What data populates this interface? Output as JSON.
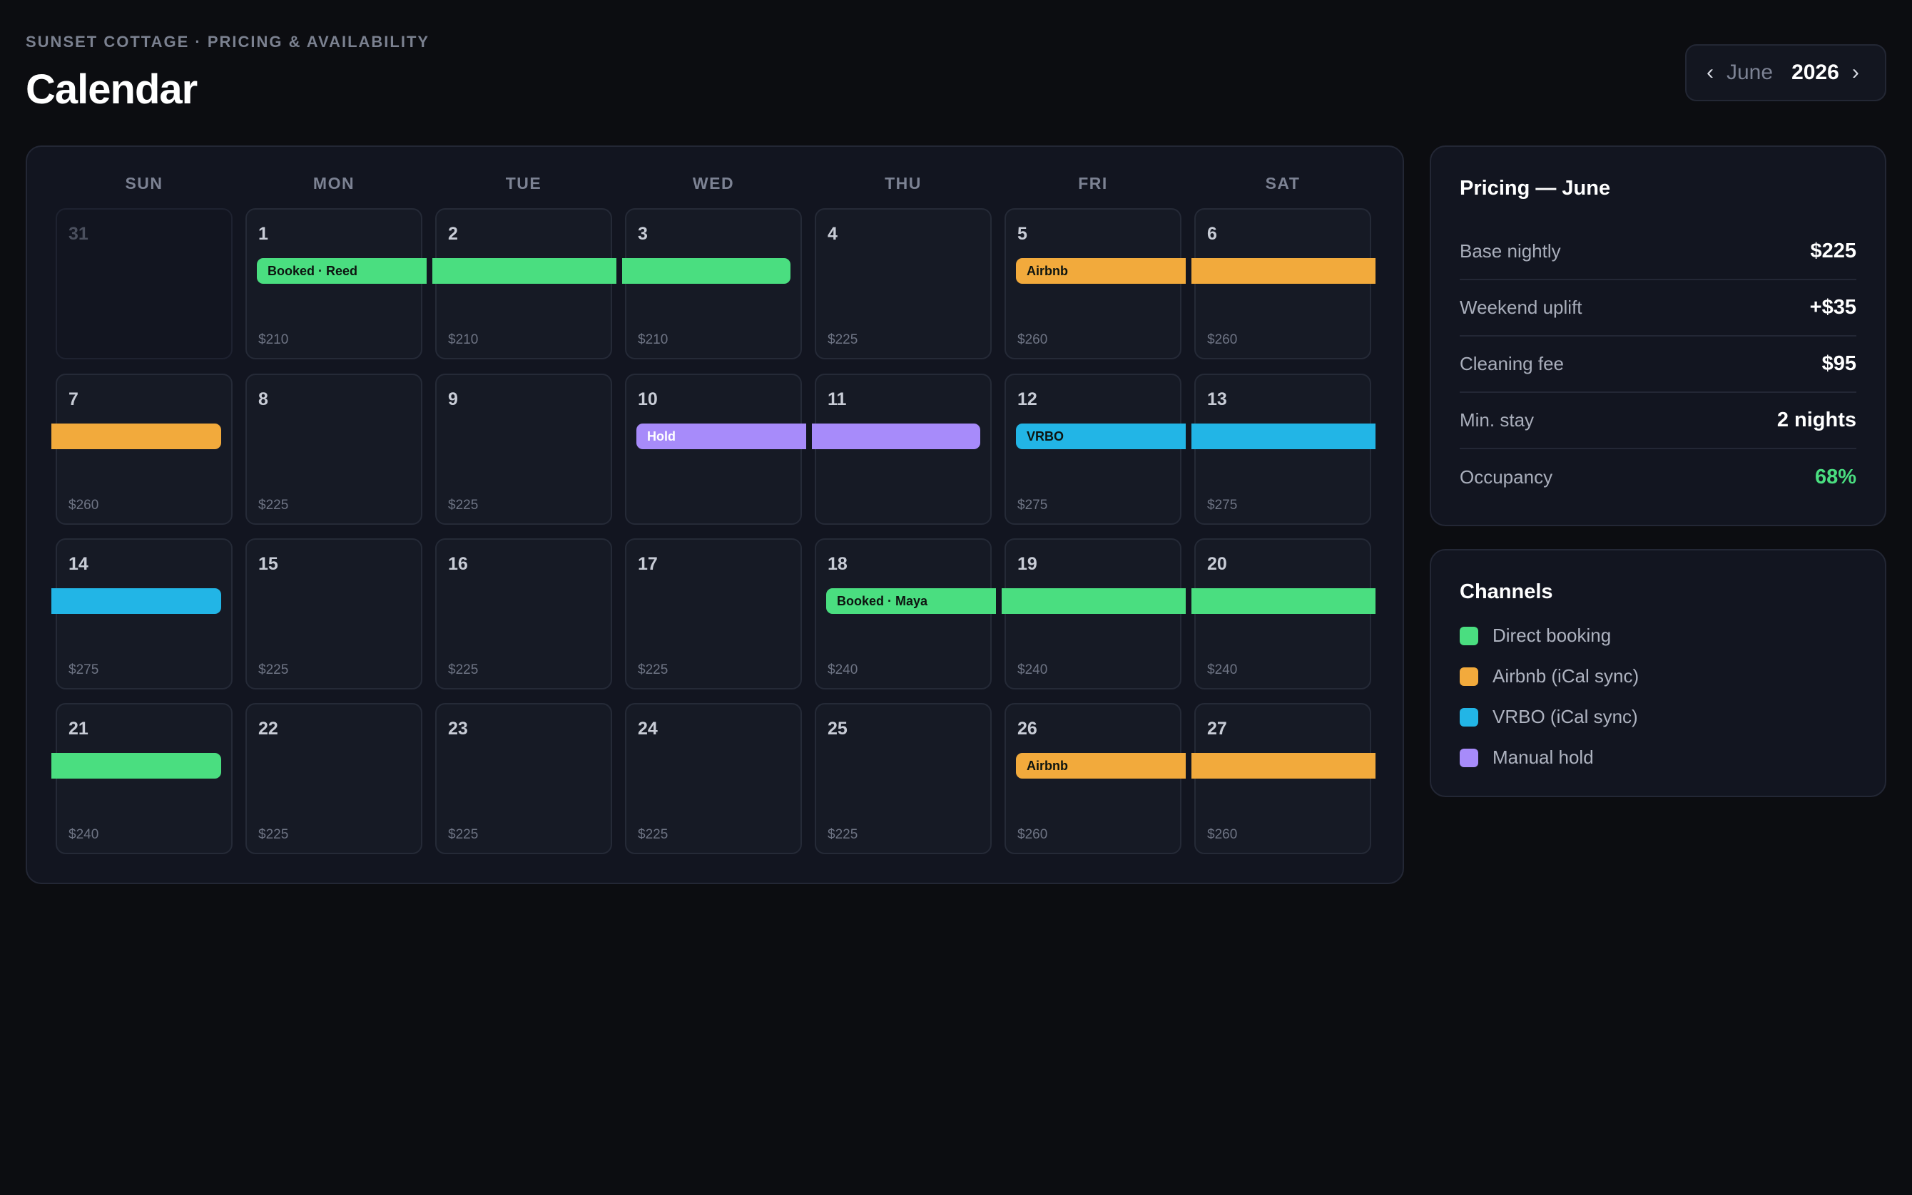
{
  "header": {
    "eyebrow": "SUNSET COTTAGE · PRICING & AVAILABILITY",
    "title": "Calendar"
  },
  "month_nav": {
    "prev_icon": "‹",
    "month": "June",
    "year": "2026",
    "next_icon": "›"
  },
  "weekdays": [
    "SUN",
    "MON",
    "TUE",
    "WED",
    "THU",
    "FRI",
    "SAT"
  ],
  "colors": {
    "direct": "#4ade80",
    "airbnb": "#f2aa3c",
    "vrbo": "#22b5e6",
    "hold": "#a78bfa",
    "occupancy_good": "#4ade80"
  },
  "weeks": [
    [
      {
        "day": "31",
        "price": "",
        "muted": true
      },
      {
        "day": "1",
        "price": "$210"
      },
      {
        "day": "2",
        "price": "$210"
      },
      {
        "day": "3",
        "price": "$210"
      },
      {
        "day": "4",
        "price": "$225"
      },
      {
        "day": "5",
        "price": "$260"
      },
      {
        "day": "6",
        "price": "$260"
      }
    ],
    [
      {
        "day": "7",
        "price": "$260"
      },
      {
        "day": "8",
        "price": "$225"
      },
      {
        "day": "9",
        "price": "$225"
      },
      {
        "day": "10",
        "price": ""
      },
      {
        "day": "11",
        "price": ""
      },
      {
        "day": "12",
        "price": "$275"
      },
      {
        "day": "13",
        "price": "$275"
      }
    ],
    [
      {
        "day": "14",
        "price": "$275"
      },
      {
        "day": "15",
        "price": "$225"
      },
      {
        "day": "16",
        "price": "$225"
      },
      {
        "day": "17",
        "price": "$225"
      },
      {
        "day": "18",
        "price": "$240"
      },
      {
        "day": "19",
        "price": "$240"
      },
      {
        "day": "20",
        "price": "$240"
      }
    ],
    [
      {
        "day": "21",
        "price": "$240"
      },
      {
        "day": "22",
        "price": "$225"
      },
      {
        "day": "23",
        "price": "$225"
      },
      {
        "day": "24",
        "price": "$225"
      },
      {
        "day": "25",
        "price": "$225"
      },
      {
        "day": "26",
        "price": "$260"
      },
      {
        "day": "27",
        "price": "$260"
      }
    ]
  ],
  "bookings": [
    {
      "week": 0,
      "col": 1,
      "label": "Booked · Reed",
      "channel": "direct",
      "start": true,
      "end": false
    },
    {
      "week": 0,
      "col": 2,
      "label": "",
      "channel": "direct",
      "start": false,
      "end": false
    },
    {
      "week": 0,
      "col": 3,
      "label": "",
      "channel": "direct",
      "start": false,
      "end": true
    },
    {
      "week": 0,
      "col": 5,
      "label": "Airbnb",
      "channel": "airbnb",
      "start": true,
      "end": false
    },
    {
      "week": 0,
      "col": 6,
      "label": "",
      "channel": "airbnb",
      "start": false,
      "end": false
    },
    {
      "week": 1,
      "col": 0,
      "label": "",
      "channel": "airbnb",
      "start": false,
      "end": true
    },
    {
      "week": 1,
      "col": 3,
      "label": "Hold",
      "channel": "hold",
      "start": true,
      "end": false
    },
    {
      "week": 1,
      "col": 4,
      "label": "",
      "channel": "hold",
      "start": false,
      "end": true
    },
    {
      "week": 1,
      "col": 5,
      "label": "VRBO",
      "channel": "vrbo",
      "start": true,
      "end": false
    },
    {
      "week": 1,
      "col": 6,
      "label": "",
      "channel": "vrbo",
      "start": false,
      "end": false
    },
    {
      "week": 2,
      "col": 0,
      "label": "",
      "channel": "vrbo",
      "start": false,
      "end": true
    },
    {
      "week": 2,
      "col": 4,
      "label": "Booked · Maya",
      "channel": "direct",
      "start": true,
      "end": false
    },
    {
      "week": 2,
      "col": 5,
      "label": "",
      "channel": "direct",
      "start": false,
      "end": false
    },
    {
      "week": 2,
      "col": 6,
      "label": "",
      "channel": "direct",
      "start": false,
      "end": false
    },
    {
      "week": 3,
      "col": 0,
      "label": "",
      "channel": "direct",
      "start": false,
      "end": true
    },
    {
      "week": 3,
      "col": 5,
      "label": "Airbnb",
      "channel": "airbnb",
      "start": true,
      "end": false
    },
    {
      "week": 3,
      "col": 6,
      "label": "",
      "channel": "airbnb",
      "start": false,
      "end": false
    }
  ],
  "pricing": {
    "title": "Pricing — June",
    "rows": [
      {
        "label": "Base nightly",
        "value": "$225"
      },
      {
        "label": "Weekend uplift",
        "value": "+$35"
      },
      {
        "label": "Cleaning fee",
        "value": "$95"
      },
      {
        "label": "Min. stay",
        "value": "2 nights"
      },
      {
        "label": "Occupancy",
        "value": "68%"
      }
    ]
  },
  "channels": {
    "title": "Channels",
    "items": [
      {
        "label": "Direct booking",
        "channel": "direct"
      },
      {
        "label": "Airbnb (iCal sync)",
        "channel": "airbnb"
      },
      {
        "label": "VRBO (iCal sync)",
        "channel": "vrbo"
      },
      {
        "label": "Manual hold",
        "channel": "hold"
      }
    ]
  }
}
